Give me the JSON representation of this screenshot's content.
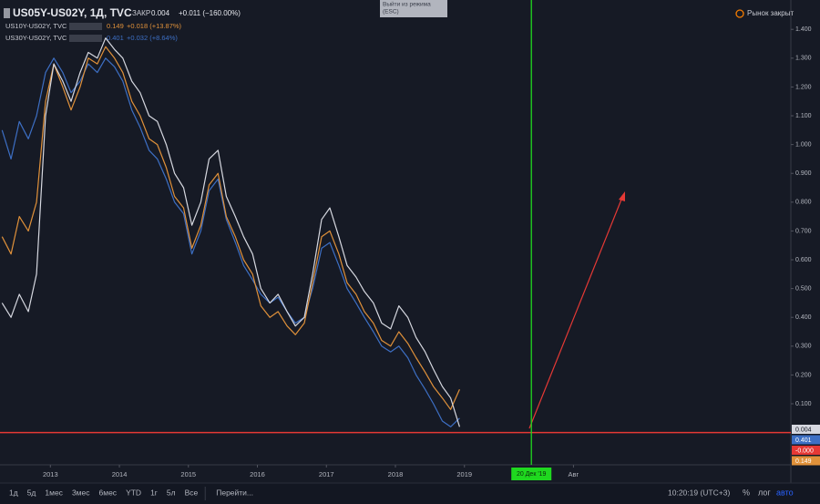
{
  "chart_data": {
    "type": "line",
    "x": [
      2012.3,
      2012.43,
      2012.55,
      2012.68,
      2012.8,
      2012.93,
      2013.05,
      2013.18,
      2013.3,
      2013.43,
      2013.55,
      2013.68,
      2013.8,
      2013.93,
      2014.05,
      2014.18,
      2014.3,
      2014.43,
      2014.55,
      2014.68,
      2014.8,
      2014.93,
      2015.05,
      2015.18,
      2015.3,
      2015.43,
      2015.55,
      2015.68,
      2015.8,
      2015.93,
      2016.05,
      2016.18,
      2016.3,
      2016.43,
      2016.55,
      2016.68,
      2016.8,
      2016.93,
      2017.05,
      2017.18,
      2017.3,
      2017.43,
      2017.55,
      2017.68,
      2017.8,
      2017.93,
      2018.05,
      2018.18,
      2018.3,
      2018.43,
      2018.55,
      2018.68,
      2018.8,
      2018.93
    ],
    "series": [
      {
        "name": "US30Y-US02Y, TVC",
        "color": "#3d6fc4",
        "values": [
          1.05,
          0.95,
          1.08,
          1.02,
          1.1,
          1.25,
          1.3,
          1.25,
          1.18,
          1.22,
          1.28,
          1.25,
          1.3,
          1.27,
          1.22,
          1.12,
          1.06,
          0.98,
          0.95,
          0.88,
          0.8,
          0.76,
          0.62,
          0.7,
          0.84,
          0.88,
          0.74,
          0.66,
          0.58,
          0.53,
          0.48,
          0.45,
          0.47,
          0.42,
          0.38,
          0.4,
          0.5,
          0.64,
          0.66,
          0.58,
          0.5,
          0.45,
          0.4,
          0.35,
          0.3,
          0.28,
          0.3,
          0.26,
          0.2,
          0.15,
          0.1,
          0.04,
          0.02,
          0.05
        ]
      },
      {
        "name": "US10Y-US02Y, TVC",
        "color": "#e0913a",
        "values": [
          0.68,
          0.62,
          0.75,
          0.7,
          0.8,
          1.15,
          1.28,
          1.2,
          1.12,
          1.2,
          1.3,
          1.28,
          1.34,
          1.3,
          1.25,
          1.15,
          1.1,
          1.02,
          1.0,
          0.92,
          0.82,
          0.78,
          0.64,
          0.72,
          0.86,
          0.9,
          0.75,
          0.68,
          0.6,
          0.55,
          0.44,
          0.4,
          0.42,
          0.37,
          0.34,
          0.38,
          0.52,
          0.68,
          0.7,
          0.62,
          0.52,
          0.48,
          0.42,
          0.38,
          0.32,
          0.3,
          0.35,
          0.31,
          0.26,
          0.21,
          0.16,
          0.12,
          0.08,
          0.15
        ]
      },
      {
        "name": "US05Y-US02Y, 1Д, TVC",
        "color": "#d6d8e0",
        "values": [
          0.45,
          0.4,
          0.48,
          0.42,
          0.55,
          1.1,
          1.28,
          1.22,
          1.15,
          1.25,
          1.32,
          1.3,
          1.37,
          1.33,
          1.3,
          1.22,
          1.18,
          1.1,
          1.08,
          1.0,
          0.9,
          0.85,
          0.72,
          0.8,
          0.95,
          0.98,
          0.82,
          0.75,
          0.68,
          0.62,
          0.5,
          0.45,
          0.48,
          0.42,
          0.37,
          0.4,
          0.55,
          0.74,
          0.78,
          0.68,
          0.58,
          0.54,
          0.49,
          0.45,
          0.38,
          0.36,
          0.44,
          0.4,
          0.33,
          0.28,
          0.22,
          0.16,
          0.12,
          0.02
        ]
      }
    ],
    "xlim": [
      2012.27,
      2023.73
    ],
    "xticks": [
      2013,
      2014,
      2015,
      2016,
      2017,
      2018,
      2019,
      {
        "value": 2020.58,
        "label": "Авг"
      }
    ],
    "ylim": [
      -0.112,
      1.502
    ],
    "yticks": [
      {
        "value": 0.1,
        "label": "0.100"
      },
      {
        "value": 0.2,
        "label": "0.200"
      },
      {
        "value": 0.3,
        "label": "0.300"
      },
      {
        "value": 0.4,
        "label": "0.400"
      },
      {
        "value": 0.5,
        "label": "0.500"
      },
      {
        "value": 0.6,
        "label": "0.600"
      },
      {
        "value": 0.7,
        "label": "0.700"
      },
      {
        "value": 0.8,
        "label": "0.800"
      },
      {
        "value": 0.9,
        "label": "0.900"
      },
      {
        "value": 1.0,
        "label": "1.000"
      },
      {
        "value": 1.1,
        "label": "1.100"
      },
      {
        "value": 1.2,
        "label": "1.200"
      },
      {
        "value": 1.3,
        "label": "1.300"
      },
      {
        "value": 1.4,
        "label": "1.400"
      }
    ],
    "grid": false,
    "hline": {
      "value": 0,
      "color": "#e53935"
    },
    "cursor": {
      "value": 2019.97,
      "label": "20 Дек '19",
      "color": "#1fd81f"
    },
    "price_labels": [
      {
        "label": "0.004",
        "color": "#d6d8e0"
      },
      {
        "label": "0.401",
        "color": "#3d6fc4"
      },
      {
        "label": "-0.000",
        "color": "#e53935"
      },
      {
        "label": "0.149",
        "color": "#e0913a"
      }
    ]
  },
  "legend": {
    "main": {
      "name": "US05Y-US02Y, 1Д, TVC",
      "close_label": "ЗАКР",
      "close": "0.004",
      "change": "+0.011 (−160.00%)"
    },
    "rows": [
      {
        "name": "US10Y-US02Y, TVC",
        "value": "0.149",
        "change": "+0.018 (+13.87%)"
      },
      {
        "name": "US30Y-US02Y, TVC",
        "value": "0.401",
        "change": "+0.032 (+8.64%)"
      }
    ]
  },
  "tooltip": {
    "line1": "Выйти из режима",
    "line2": "(ESC)"
  },
  "market_status": "Рынок закрыт",
  "bottom_bar": {
    "ranges": [
      "1д",
      "5д",
      "1мес",
      "3мес",
      "6мес",
      "YTD",
      "1г",
      "5л",
      "Все"
    ],
    "goto": "Перейти...",
    "time": "10:20:19 (UTC+3)",
    "toggles": [
      "%",
      "лог",
      "авто"
    ]
  }
}
